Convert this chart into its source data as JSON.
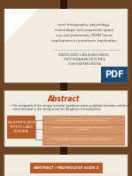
{
  "bg_color": "#6b4423",
  "slide_bg": "#f0ece0",
  "title_lines": [
    "sical stratigraphy, palynology,",
    "imentologic and sequential appro",
    "ous and paleomeso FROM llanos",
    "implications in petroleum exploration"
  ],
  "author_lines": [
    "ROBERTO GOMEZ & ANA JALANGO RAMIREZ",
    "PEDRO PEDRAZA BELLON DE AYALA",
    "LUISA SEBASTIAN CARDONA"
  ],
  "pdf_bg": "#1a4a7a",
  "pdf_text": "PDF",
  "abstract_title": "Abstract",
  "abstract_color": "#cc3300",
  "bullet1": "The stratigraphy of the cienaga formation, guadalupe group, guadalupe formation and sierra",
  "bullet2": "mieira formation in the vicinity of san luis del palmar is discussed here.",
  "left_box_color": "#b85c2a",
  "left_box_text": "PALINOMORFOS GRUPO\nPROTECTO, LLANOS\nECOSISTEMA",
  "right_box_color": "#d4956a",
  "right_box_border": "#b85c2a",
  "right_box_texts": [
    "ARQUITECTURE ET ANALYSE LITHO-STRATIGRAPHIQUE\nANALYSE DES FORMATIONS DU SUD Y CARBONATES",
    "LITHOSTRATIGRAPHIE ANALYSE DESDE STRATIGRAPHIE CAPE\nCARABOBEAN",
    "ARQUITECTURE ET ANALYSE DE FACIES LITHO-STRATIGRAPHIE\nFORMACIONE FORMACION DELLA Y ASPECTOS FRONOS"
  ],
  "connector_color": "#777777",
  "dark_bar": "#2a1506",
  "slide3_banner_color": "#b85c2a",
  "slide3_banner_text": "ABSTRACT / PALYNOLOGY SLIDE 3"
}
